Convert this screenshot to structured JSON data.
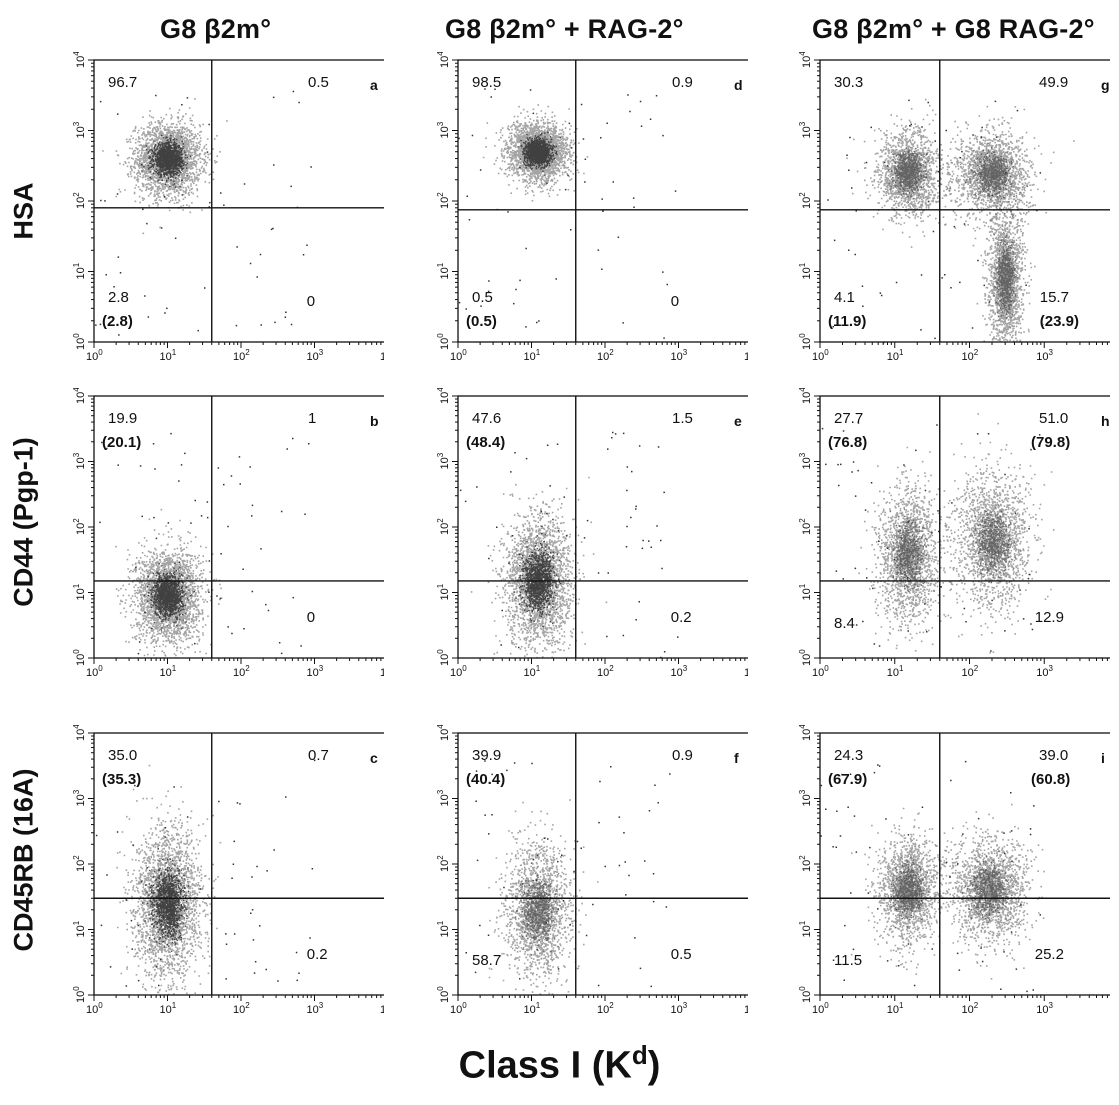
{
  "figure": {
    "column_titles": [
      {
        "name": "g8-b2m",
        "text": "G8 β2m°"
      },
      {
        "name": "g8-b2m-rag2",
        "text": "G8 β2m° +  RAG-2°"
      },
      {
        "name": "g8-b2m-g8-rag2",
        "text": "G8 β2m° + G8 RAG-2°"
      }
    ],
    "row_labels": [
      "HSA",
      "CD44  (Pgp-1)",
      "CD45RB  (16A)"
    ],
    "x_axis_label": "Class I (K",
    "x_axis_label_sup": "d",
    "axis_tick_base": "10",
    "axis_tick_exponents": [
      "0",
      "1",
      "2",
      "3",
      "4"
    ]
  },
  "chart_data": [
    {
      "type": "scatter",
      "panel": "a",
      "y_axis": "HSA",
      "x_axis": "Class I (Kd)",
      "xlim": [
        1,
        10000
      ],
      "ylim": [
        1,
        10000
      ],
      "scale": "log",
      "gates": {
        "x": 40,
        "y": 80
      },
      "quadrant_labels": {
        "upper_left": "96.7",
        "upper_right": "0.5",
        "lower_left": "2.8",
        "lower_left_paren": "(2.8)",
        "lower_right": "0"
      },
      "populations": [
        {
          "x": 10,
          "y": 400,
          "sx": 0.22,
          "sy": 0.25,
          "density": "high"
        }
      ]
    },
    {
      "type": "scatter",
      "panel": "b",
      "y_axis": "CD44 (Pgp-1)",
      "x_axis": "Class I (Kd)",
      "xlim": [
        1,
        10000
      ],
      "ylim": [
        1,
        10000
      ],
      "scale": "log",
      "gates": {
        "x": 40,
        "y": 15
      },
      "quadrant_labels": {
        "upper_left": "19.9",
        "upper_left_paren": "(20.1)",
        "upper_right": "1",
        "lower_left": "",
        "lower_right": "0"
      },
      "populations": [
        {
          "x": 10,
          "y": 9,
          "sx": 0.22,
          "sy": 0.35,
          "density": "high"
        }
      ]
    },
    {
      "type": "scatter",
      "panel": "c",
      "y_axis": "CD45RB (16A)",
      "x_axis": "Class I (Kd)",
      "xlim": [
        1,
        10000
      ],
      "ylim": [
        1,
        10000
      ],
      "scale": "log",
      "gates": {
        "x": 40,
        "y": 30
      },
      "quadrant_labels": {
        "upper_left": "35.0",
        "upper_left_paren": "(35.3)",
        "upper_right": "0.7",
        "lower_left": "",
        "lower_right": "0.2"
      },
      "populations": [
        {
          "x": 10,
          "y": 25,
          "sx": 0.22,
          "sy": 0.55,
          "density": "high"
        }
      ]
    },
    {
      "type": "scatter",
      "panel": "d",
      "y_axis": "HSA",
      "x_axis": "Class I (Kd)",
      "xlim": [
        1,
        10000
      ],
      "ylim": [
        1,
        10000
      ],
      "scale": "log",
      "gates": {
        "x": 40,
        "y": 75
      },
      "quadrant_labels": {
        "upper_left": "98.5",
        "upper_right": "0.9",
        "lower_left": "0.5",
        "lower_left_paren": "(0.5)",
        "lower_right": "0"
      },
      "populations": [
        {
          "x": 12,
          "y": 500,
          "sx": 0.2,
          "sy": 0.2,
          "density": "high"
        }
      ]
    },
    {
      "type": "scatter",
      "panel": "e",
      "y_axis": "CD44 (Pgp-1)",
      "x_axis": "Class I (Kd)",
      "xlim": [
        1,
        10000
      ],
      "ylim": [
        1,
        10000
      ],
      "scale": "log",
      "gates": {
        "x": 40,
        "y": 15
      },
      "quadrant_labels": {
        "upper_left": "47.6",
        "upper_left_paren": "(48.4)",
        "upper_right": "1.5",
        "lower_left": "",
        "lower_right": "0.2"
      },
      "populations": [
        {
          "x": 12,
          "y": 15,
          "sx": 0.22,
          "sy": 0.5,
          "density": "high"
        }
      ]
    },
    {
      "type": "scatter",
      "panel": "f",
      "y_axis": "CD45RB (16A)",
      "x_axis": "Class I (Kd)",
      "xlim": [
        1,
        10000
      ],
      "ylim": [
        1,
        10000
      ],
      "scale": "log",
      "gates": {
        "x": 40,
        "y": 30
      },
      "quadrant_labels": {
        "upper_left": "39.9",
        "upper_left_paren": "(40.4)",
        "upper_right": "0.9",
        "lower_left": "58.7",
        "lower_right": "0.5"
      },
      "populations": [
        {
          "x": 12,
          "y": 20,
          "sx": 0.22,
          "sy": 0.5,
          "density": "medium"
        }
      ]
    },
    {
      "type": "scatter",
      "panel": "g",
      "y_axis": "HSA",
      "x_axis": "Class I (Kd)",
      "xlim": [
        1,
        10000
      ],
      "ylim": [
        1,
        10000
      ],
      "scale": "log",
      "gates": {
        "x": 40,
        "y": 75
      },
      "quadrant_labels": {
        "upper_left": "30.3",
        "upper_right": "49.9",
        "lower_left": "4.1",
        "lower_left_paren": "(11.9)",
        "lower_right": "15.7",
        "lower_right_paren": "(23.9)"
      },
      "populations": [
        {
          "x": 15,
          "y": 250,
          "sx": 0.2,
          "sy": 0.3,
          "density": "medium"
        },
        {
          "x": 200,
          "y": 250,
          "sx": 0.25,
          "sy": 0.3,
          "density": "medium"
        },
        {
          "x": 300,
          "y": 8,
          "sx": 0.12,
          "sy": 0.5,
          "density": "medium"
        }
      ]
    },
    {
      "type": "scatter",
      "panel": "h",
      "y_axis": "CD44 (Pgp-1)",
      "x_axis": "Class I (Kd)",
      "xlim": [
        1,
        10000
      ],
      "ylim": [
        1,
        10000
      ],
      "scale": "log",
      "gates": {
        "x": 40,
        "y": 15
      },
      "quadrant_labels": {
        "upper_left": "27.7",
        "upper_left_paren": "(76.8)",
        "upper_right": "51.0",
        "upper_right_paren": "(79.8)",
        "lower_left": "8.4",
        "lower_right": "12.9"
      },
      "populations": [
        {
          "x": 15,
          "y": 40,
          "sx": 0.2,
          "sy": 0.5,
          "density": "medium"
        },
        {
          "x": 200,
          "y": 60,
          "sx": 0.25,
          "sy": 0.5,
          "density": "medium"
        }
      ]
    },
    {
      "type": "scatter",
      "panel": "i",
      "y_axis": "CD45RB (16A)",
      "x_axis": "Class I (Kd)",
      "xlim": [
        1,
        10000
      ],
      "ylim": [
        1,
        10000
      ],
      "scale": "log",
      "gates": {
        "x": 40,
        "y": 30
      },
      "quadrant_labels": {
        "upper_left": "24.3",
        "upper_left_paren": "(67.9)",
        "upper_right": "39.0",
        "upper_right_paren": "(60.8)",
        "lower_left": "11.5",
        "lower_right": "25.2"
      },
      "populations": [
        {
          "x": 15,
          "y": 40,
          "sx": 0.2,
          "sy": 0.4,
          "density": "medium"
        },
        {
          "x": 180,
          "y": 40,
          "sx": 0.25,
          "sy": 0.4,
          "density": "medium"
        }
      ]
    }
  ]
}
